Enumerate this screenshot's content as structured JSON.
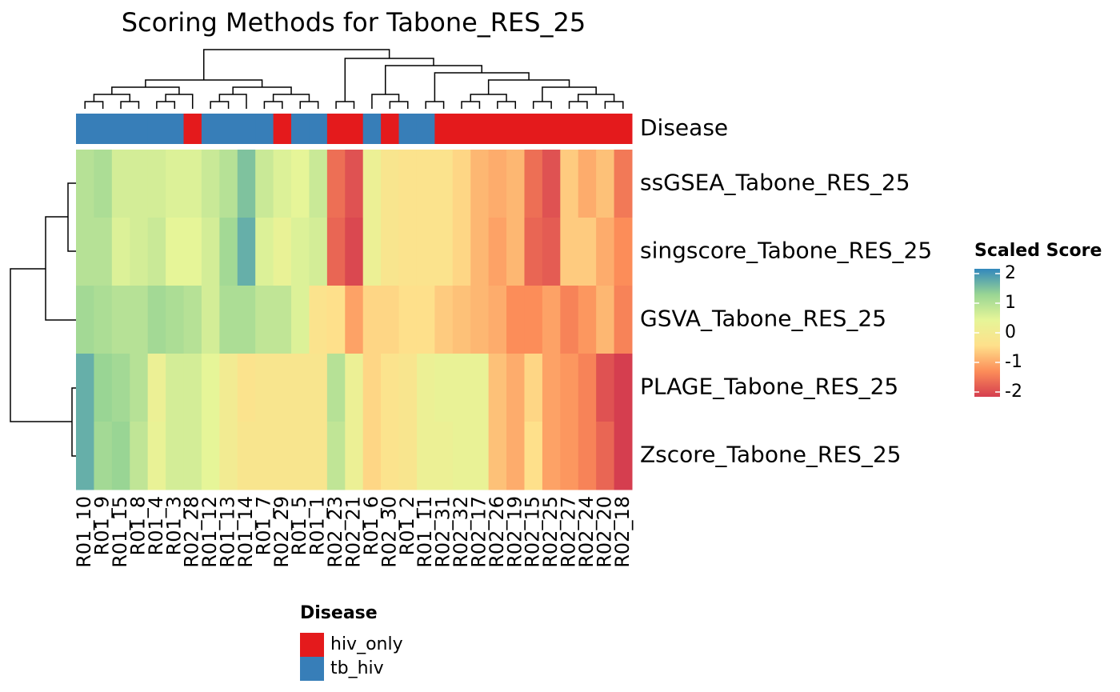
{
  "chart_data": {
    "type": "heatmap",
    "title": "Scoring Methods for Tabone_RES_25",
    "rows": [
      "ssGSEA_Tabone_RES_25",
      "singscore_Tabone_RES_25",
      "GSVA_Tabone_RES_25",
      "PLAGE_Tabone_RES_25",
      "Zscore_Tabone_RES_25"
    ],
    "columns": [
      "R01_10",
      "R01_9",
      "R01_15",
      "R01_8",
      "R01_4",
      "R01_3",
      "R02_28",
      "R01_12",
      "R01_13",
      "R01_14",
      "R01_7",
      "R02_29",
      "R01_5",
      "R01_1",
      "R02_23",
      "R02_21",
      "R01_6",
      "R02_30",
      "R01_2",
      "R01_11",
      "R02_31",
      "R02_32",
      "R02_17",
      "R02_26",
      "R02_19",
      "R02_15",
      "R02_25",
      "R02_27",
      "R02_24",
      "R02_20",
      "R02_18"
    ],
    "values": [
      [
        0.9,
        1.0,
        0.6,
        0.6,
        0.6,
        0.5,
        0.5,
        0.7,
        0.9,
        1.4,
        0.7,
        0.5,
        0.4,
        0.7,
        -1.5,
        -1.8,
        0.2,
        -0.2,
        -0.3,
        -0.3,
        -0.3,
        -0.5,
        -0.8,
        -0.9,
        -0.8,
        -1.5,
        -1.8,
        -0.6,
        -0.9,
        -0.7,
        -1.4
      ],
      [
        0.9,
        0.9,
        0.5,
        0.6,
        0.7,
        0.4,
        0.4,
        0.6,
        1.1,
        1.6,
        0.5,
        0.3,
        0.5,
        0.6,
        -1.6,
        -1.9,
        0.2,
        -0.2,
        -0.3,
        -0.3,
        -0.3,
        -0.5,
        -0.8,
        -1.0,
        -0.8,
        -1.6,
        -1.7,
        -0.6,
        -0.6,
        -0.9,
        -1.2
      ],
      [
        1.1,
        1.0,
        0.9,
        0.9,
        1.1,
        1.0,
        0.9,
        0.6,
        1.0,
        1.0,
        0.8,
        0.8,
        0.5,
        -0.3,
        -0.4,
        -1.0,
        -0.5,
        -0.5,
        -0.4,
        -0.4,
        -0.6,
        -0.7,
        -0.8,
        -0.9,
        -1.2,
        -1.2,
        -1.0,
        -1.3,
        -1.1,
        -0.8,
        -1.3
      ],
      [
        1.6,
        1.2,
        1.1,
        0.9,
        0.2,
        0.6,
        0.6,
        0.4,
        0.0,
        -0.3,
        -0.2,
        -0.2,
        -0.2,
        -0.2,
        0.9,
        0.2,
        -0.5,
        -0.3,
        -0.2,
        0.2,
        0.3,
        0.3,
        0.3,
        -0.7,
        -0.9,
        -0.5,
        -1.0,
        -1.1,
        -1.3,
        -1.8,
        -2.0
      ],
      [
        1.6,
        1.1,
        1.2,
        0.8,
        0.3,
        0.6,
        0.6,
        0.4,
        0.0,
        -0.2,
        -0.2,
        -0.2,
        -0.2,
        -0.2,
        0.8,
        0.2,
        -0.5,
        -0.3,
        -0.2,
        0.2,
        0.2,
        0.3,
        0.3,
        -0.7,
        -0.9,
        -0.4,
        -1.0,
        -1.1,
        -1.3,
        -1.6,
        -2.0
      ]
    ],
    "annotation": {
      "title": "Disease",
      "name": "Disease",
      "levels": [
        {
          "name": "hiv_only",
          "color": "#e41a1c"
        },
        {
          "name": "tb_hiv",
          "color": "#377eb8"
        }
      ],
      "values": [
        "tb_hiv",
        "tb_hiv",
        "tb_hiv",
        "tb_hiv",
        "tb_hiv",
        "tb_hiv",
        "hiv_only",
        "tb_hiv",
        "tb_hiv",
        "tb_hiv",
        "tb_hiv",
        "hiv_only",
        "tb_hiv",
        "tb_hiv",
        "hiv_only",
        "hiv_only",
        "tb_hiv",
        "hiv_only",
        "tb_hiv",
        "tb_hiv",
        "hiv_only",
        "hiv_only",
        "hiv_only",
        "hiv_only",
        "hiv_only",
        "hiv_only",
        "hiv_only",
        "hiv_only",
        "hiv_only",
        "hiv_only",
        "hiv_only"
      ]
    },
    "colorbar": {
      "title": "Scaled Score",
      "lim": [
        -2,
        2
      ],
      "ticks": [
        2,
        1,
        0,
        -1,
        -2
      ],
      "colors": [
        "#d53e4f",
        "#fc8d59",
        "#fee08b",
        "#e6f598",
        "#99d594",
        "#3288bd"
      ]
    }
  }
}
